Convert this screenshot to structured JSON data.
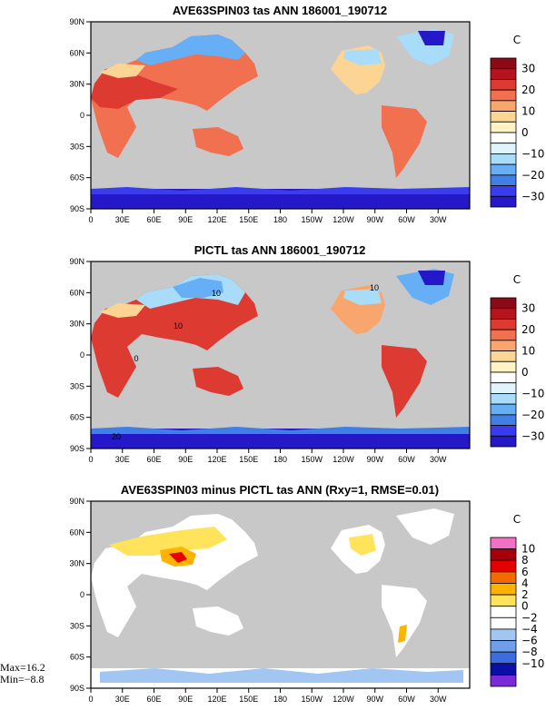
{
  "colors": {
    "ocean": "#c8c8c8",
    "tas_palette": [
      "#2418c8",
      "#3a3cf0",
      "#3f7fe6",
      "#66aef5",
      "#a8dcf8",
      "#dff4fb",
      "#ffffff",
      "#fff3c4",
      "#fcd494",
      "#f9a66e",
      "#f07050",
      "#dd3a32",
      "#b5141e",
      "#8c0a18"
    ],
    "diff_palette": [
      "#7b2ad8",
      "#0b0fa8",
      "#3d6be0",
      "#6f9fe8",
      "#a2c6f2",
      "#ffffff",
      "#ffffff",
      "#ffe35a",
      "#ffb300",
      "#f26a00",
      "#e50000",
      "#a8000a",
      "#f16fc4"
    ]
  },
  "chart_data": [
    {
      "type": "heatmap",
      "title": "AVE63SPIN03 tas ANN 186001_190712",
      "colorbar_unit": "C",
      "colorbar_labels": [
        "30",
        "20",
        "10",
        "0",
        "−10",
        "−20",
        "−30"
      ],
      "lat_labels": [
        "90N",
        "60N",
        "30N",
        "0",
        "30S",
        "60S",
        "90S"
      ],
      "lon_labels": [
        "0",
        "30E",
        "60E",
        "90E",
        "120E",
        "150E",
        "180",
        "150W",
        "120W",
        "90W",
        "60W",
        "30W"
      ]
    },
    {
      "type": "heatmap",
      "title": "PICTL tas ANN 186001_190712",
      "colorbar_unit": "C",
      "colorbar_labels": [
        "30",
        "20",
        "10",
        "0",
        "−10",
        "−20",
        "−30"
      ],
      "lat_labels": [
        "90N",
        "60N",
        "30N",
        "0",
        "30S",
        "60S",
        "90S"
      ],
      "lon_labels": [
        "0",
        "30E",
        "60E",
        "90E",
        "120E",
        "150E",
        "180",
        "150W",
        "120W",
        "90W",
        "60W",
        "30W"
      ],
      "contour_labels": [
        "10",
        "10",
        "10",
        "0",
        "20"
      ]
    },
    {
      "type": "heatmap",
      "title": "AVE63SPIN03 minus PICTL tas ANN (Rxy=1, RMSE=0.01)",
      "colorbar_unit": "C",
      "colorbar_labels": [
        "10",
        "8",
        "6",
        "4",
        "2",
        "0",
        "−2",
        "−4",
        "−6",
        "−8",
        "−10"
      ],
      "lat_labels": [
        "90N",
        "60N",
        "30N",
        "0",
        "30S",
        "60S",
        "90S"
      ],
      "lon_labels": [
        "0",
        "30E",
        "60E",
        "90E",
        "120E",
        "150E",
        "180",
        "150W",
        "120W",
        "90W",
        "60W",
        "30W"
      ],
      "max_label": "Max=16.2",
      "min_label": "Min=−8.8"
    }
  ]
}
